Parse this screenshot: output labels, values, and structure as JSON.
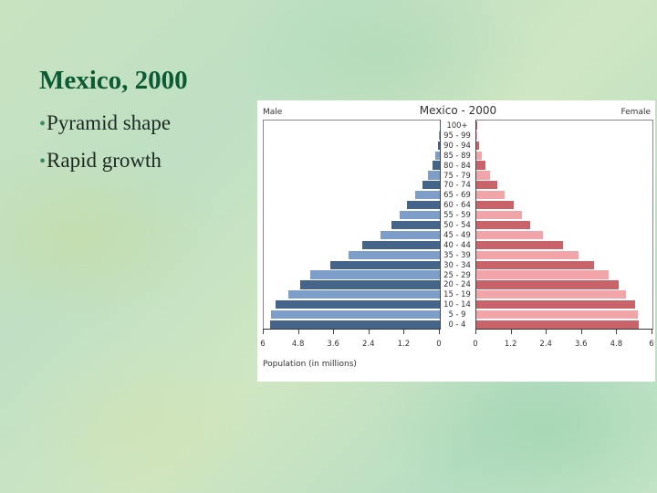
{
  "slide": {
    "title": "Mexico, 2000",
    "bullets": [
      {
        "marker": "•",
        "text": "Pyramid shape"
      },
      {
        "marker": "•",
        "text": "Rapid growth"
      }
    ]
  },
  "colors": {
    "title": "#0b5a34",
    "male_dark": "#44648a",
    "male_light": "#7d9ec8",
    "female_dark": "#c9636a",
    "female_light": "#f1a5a9"
  },
  "chart_data": {
    "type": "bar",
    "subtype": "population-pyramid",
    "title": "Mexico - 2000",
    "left_label": "Male",
    "right_label": "Female",
    "xlabel": "Population (in millions)",
    "ylabel": "",
    "xlim": [
      0,
      6
    ],
    "left_ticks": [
      "6",
      "4.8",
      "3.6",
      "2.4",
      "1.2",
      "0"
    ],
    "right_ticks": [
      "0",
      "1.2",
      "2.4",
      "3.6",
      "4.8",
      "6"
    ],
    "grid": false,
    "categories": [
      "100+",
      "95 - 99",
      "90 - 94",
      "85 - 89",
      "80 - 84",
      "75 - 79",
      "70 - 74",
      "65 - 69",
      "60 - 64",
      "55 - 59",
      "50 - 54",
      "45 - 49",
      "40 - 44",
      "35 - 39",
      "30 - 34",
      "25 - 29",
      "20 - 24",
      "15 - 19",
      "10 - 14",
      "5 - 9",
      "0 - 4"
    ],
    "series": [
      {
        "name": "Male",
        "values": [
          0.01,
          0.02,
          0.07,
          0.16,
          0.25,
          0.39,
          0.59,
          0.84,
          1.12,
          1.37,
          1.65,
          2.02,
          2.64,
          3.11,
          3.73,
          4.41,
          4.75,
          5.16,
          5.59,
          5.75,
          5.78
        ]
      },
      {
        "name": "Female",
        "values": [
          0.01,
          0.04,
          0.09,
          0.18,
          0.31,
          0.47,
          0.72,
          0.96,
          1.26,
          1.55,
          1.84,
          2.26,
          2.95,
          3.47,
          4.01,
          4.5,
          4.85,
          5.1,
          5.41,
          5.51,
          5.54
        ]
      }
    ]
  }
}
